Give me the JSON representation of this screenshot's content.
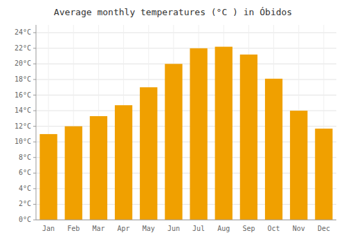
{
  "chart_data": {
    "type": "bar",
    "title": "Average monthly temperatures (°C ) in Óbidos",
    "categories": [
      "Jan",
      "Feb",
      "Mar",
      "Apr",
      "May",
      "Jun",
      "Jul",
      "Aug",
      "Sep",
      "Oct",
      "Nov",
      "Dec"
    ],
    "values": [
      11.0,
      12.0,
      13.3,
      14.7,
      17.0,
      20.0,
      22.0,
      22.2,
      21.2,
      18.1,
      14.0,
      11.7
    ],
    "color": "#F0A000",
    "ylim": [
      0,
      25
    ],
    "yticks": [
      {
        "value": 0,
        "label": "0°C"
      },
      {
        "value": 2,
        "label": "2°C"
      },
      {
        "value": 4,
        "label": "4°C"
      },
      {
        "value": 6,
        "label": "6°C"
      },
      {
        "value": 8,
        "label": "8°C"
      },
      {
        "value": 10,
        "label": "10°C"
      },
      {
        "value": 12,
        "label": "12°C"
      },
      {
        "value": 14,
        "label": "14°C"
      },
      {
        "value": 16,
        "label": "16°C"
      },
      {
        "value": 18,
        "label": "18°C"
      },
      {
        "value": 20,
        "label": "20°C"
      },
      {
        "value": 22,
        "label": "22°C"
      },
      {
        "value": 24,
        "label": "24°C"
      }
    ],
    "grid": true
  }
}
